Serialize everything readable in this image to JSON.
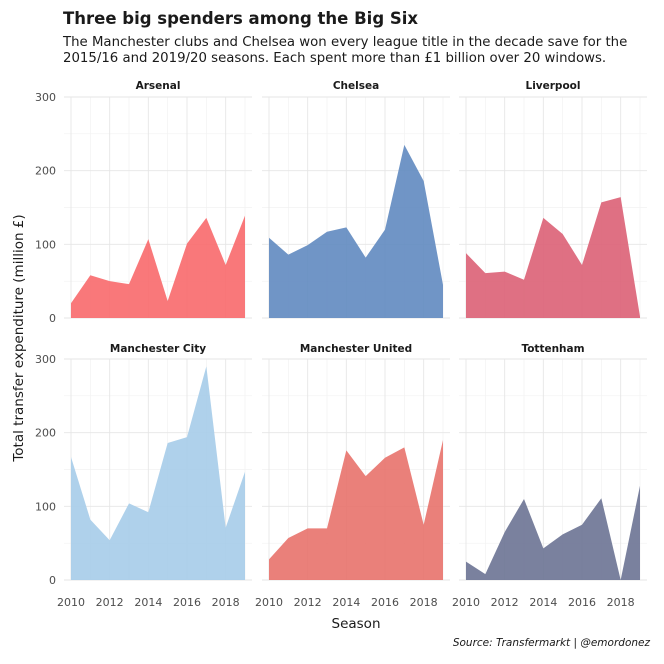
{
  "header": {
    "title": "Three big spenders among the Big Six",
    "subtitle": "The Manchester clubs and Chelsea won every league title in the decade save for the 2015/16 and 2019/20 seasons. Each spent more than £1 billion over 20 windows."
  },
  "caption": "Source: Transfermarkt | @emordonez",
  "chart_data": {
    "type": "area",
    "xlabel": "Season",
    "ylabel": "Total transfer expenditure (million £)",
    "x": [
      2010,
      2011,
      2012,
      2013,
      2014,
      2015,
      2016,
      2017,
      2018,
      2019
    ],
    "xlim": [
      2010,
      2019
    ],
    "xticks": [
      2010,
      2012,
      2014,
      2016,
      2018
    ],
    "ylim": [
      0,
      300
    ],
    "yticks": [
      0,
      100,
      200,
      300
    ],
    "grid": true,
    "legend": "none",
    "facet_layout": "2 rows x 3 columns",
    "series": [
      {
        "name": "Arsenal",
        "color": "#f8696b",
        "values": [
          20,
          58,
          50,
          46,
          107,
          23,
          101,
          136,
          72,
          139
        ]
      },
      {
        "name": "Chelsea",
        "color": "#6089c0",
        "values": [
          109,
          86,
          99,
          117,
          123,
          82,
          120,
          235,
          186,
          45
        ]
      },
      {
        "name": "Liverpool",
        "color": "#dc6175",
        "values": [
          88,
          61,
          63,
          52,
          136,
          114,
          72,
          157,
          164,
          2
        ]
      },
      {
        "name": "Manchester City",
        "color": "#a6cce9",
        "values": [
          167,
          82,
          54,
          104,
          92,
          186,
          194,
          290,
          71,
          147
        ]
      },
      {
        "name": "Manchester United",
        "color": "#e8726b",
        "values": [
          28,
          57,
          70,
          70,
          176,
          141,
          166,
          180,
          75,
          190
        ]
      },
      {
        "name": "Tottenham",
        "color": "#6b7394",
        "values": [
          25,
          8,
          65,
          110,
          43,
          62,
          75,
          111,
          0,
          128
        ]
      }
    ]
  }
}
